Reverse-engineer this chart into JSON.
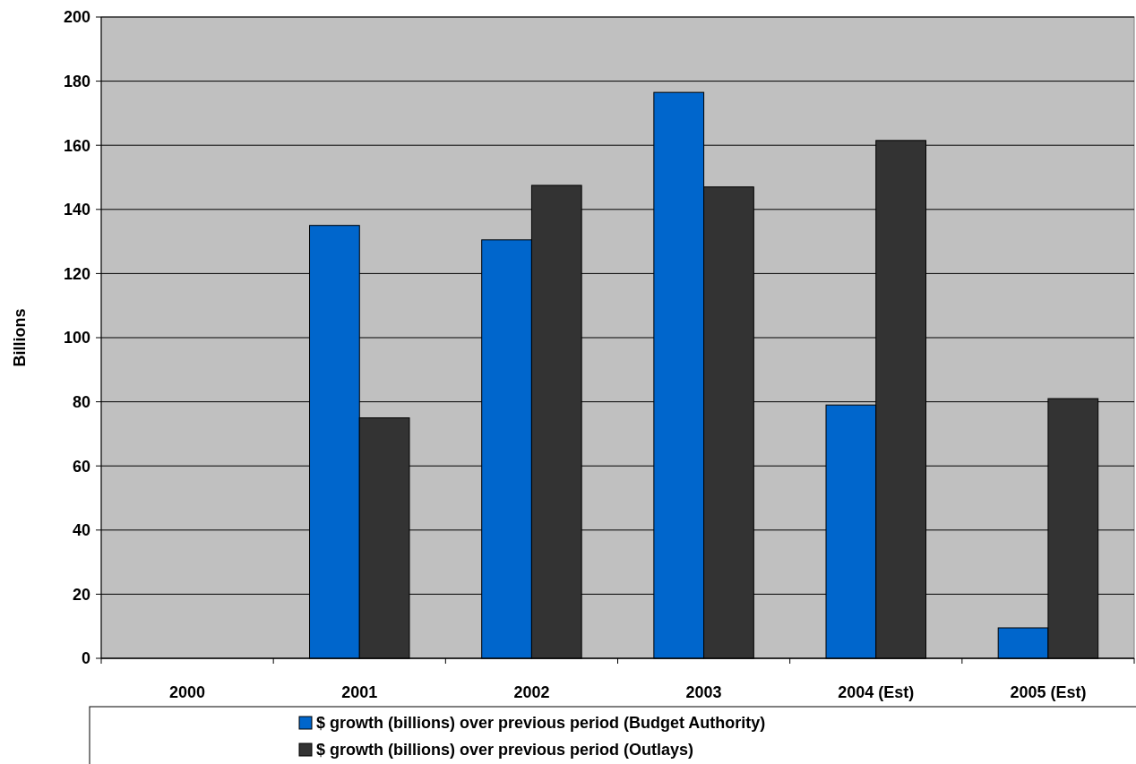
{
  "chart_data": {
    "type": "bar",
    "ylabel": "Billions",
    "categories": [
      "2000",
      "2001",
      "2002",
      "2003",
      "2004 (Est)",
      "2005 (Est)"
    ],
    "series": [
      {
        "name": "$ growth (billions) over previous period (Budget Authority)",
        "color": "#0066cc",
        "values": [
          null,
          135,
          130.5,
          176.5,
          79,
          9.5
        ]
      },
      {
        "name": "$ growth (billions) over previous period (Outlays)",
        "color": "#333333",
        "values": [
          null,
          75,
          147.5,
          147,
          161.5,
          81
        ]
      }
    ],
    "ylim": [
      0,
      200
    ],
    "yticks": [
      0,
      20,
      40,
      60,
      80,
      100,
      120,
      140,
      160,
      180,
      200
    ],
    "grid": "y",
    "legend": "bottom"
  }
}
